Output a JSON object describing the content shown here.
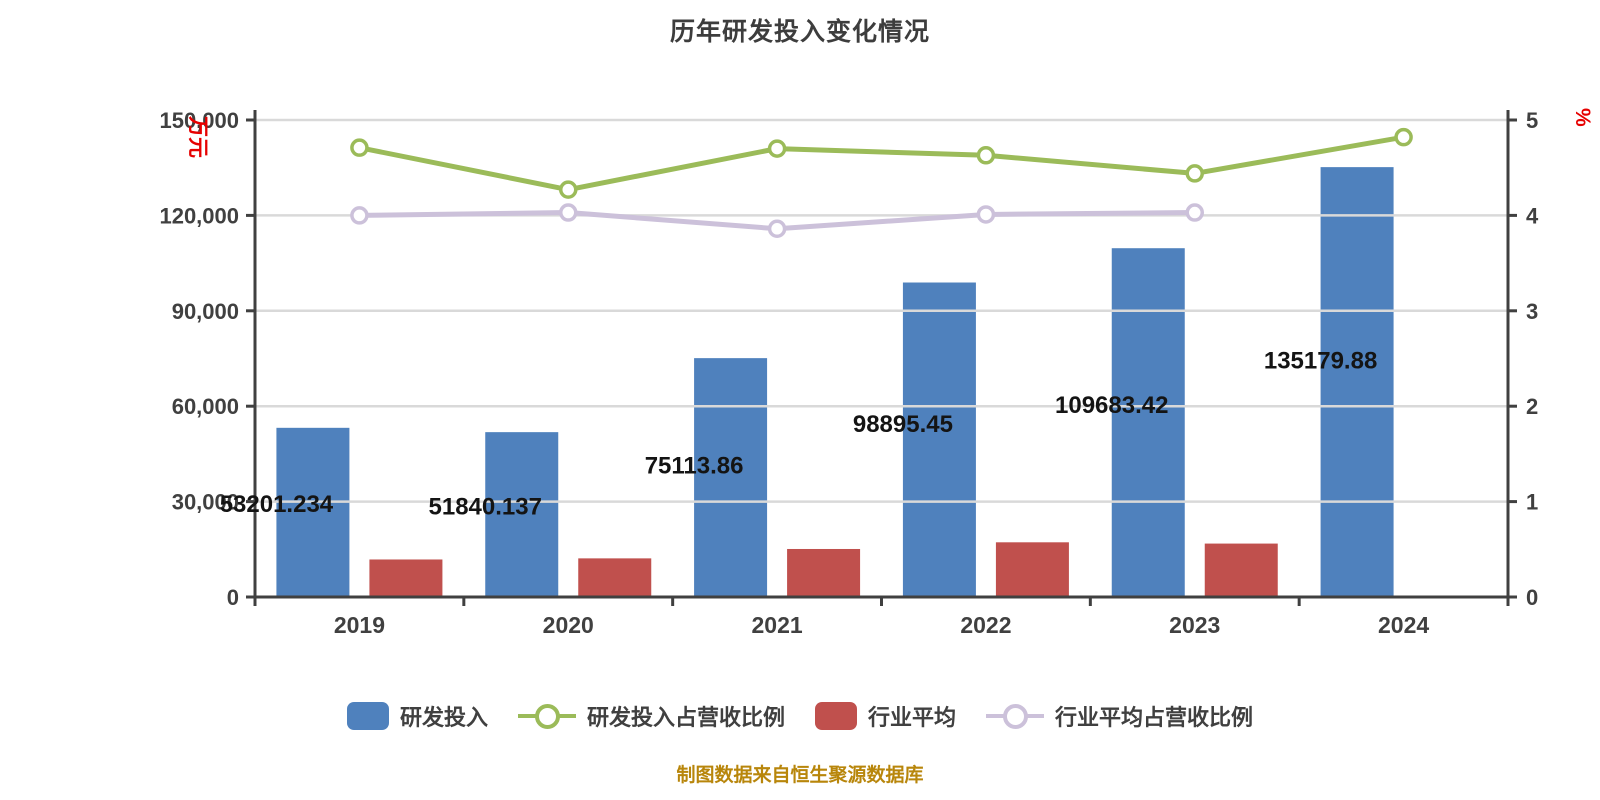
{
  "title": "历年研发投入变化情况",
  "footer": "制图数据来自恒生聚源数据库",
  "colors": {
    "bar_blue": "#4F81BD",
    "bar_red": "#C0504D",
    "line_green": "#9BBB59",
    "line_purple": "#CCC1DA",
    "axis": "#404040",
    "grid": "#D9D9D9",
    "tick_text": "#404040",
    "value_label": "#141414",
    "unit_red": "#E60000",
    "footer_gold": "#B8860B",
    "title_text": "#3D3D3D"
  },
  "legend": [
    {
      "label": "研发投入",
      "marker": "rect",
      "color": "#4F81BD"
    },
    {
      "label": "研发投入占营收比例",
      "marker": "line-dot",
      "color": "#9BBB59"
    },
    {
      "label": "行业平均",
      "marker": "rect",
      "color": "#C0504D"
    },
    {
      "label": "行业平均占营收比例",
      "marker": "line-dot",
      "color": "#CCC1DA"
    }
  ],
  "chart_data": {
    "type": "bar",
    "subtype": "bar+line dual-axis",
    "title": "历年研发投入变化情况",
    "categories": [
      "2019",
      "2020",
      "2021",
      "2022",
      "2023",
      "2024"
    ],
    "left_axis": {
      "unit": "万元",
      "min": 0,
      "max": 150000,
      "tick_step": 30000,
      "tick_labels": [
        "0",
        "30,000",
        "60,000",
        "90,000",
        "120,000",
        "150,000"
      ]
    },
    "right_axis": {
      "unit": "%",
      "min": 0,
      "max": 5,
      "tick_step": 1,
      "tick_labels": [
        "0",
        "1",
        "2",
        "3",
        "4",
        "5"
      ]
    },
    "grid": true,
    "legend_position": "bottom",
    "series": [
      {
        "name": "研发投入",
        "kind": "bar",
        "axis": "left",
        "color": "#4F81BD",
        "values": [
          53201.234,
          51840.137,
          75113.86,
          98895.45,
          109683.42,
          135179.88
        ],
        "data_labels": [
          "53201.234",
          "51840.137",
          "75113.86",
          "98895.45",
          "109683.42",
          "135179.88"
        ]
      },
      {
        "name": "行业平均",
        "kind": "bar",
        "axis": "left",
        "color": "#C0504D",
        "values": [
          11800,
          12150,
          15100,
          17200,
          16800,
          null
        ],
        "data_labels": []
      },
      {
        "name": "研发投入占营收比例",
        "kind": "line",
        "axis": "right",
        "color": "#9BBB59",
        "values": [
          4.71,
          4.27,
          4.7,
          4.63,
          4.44,
          4.82
        ]
      },
      {
        "name": "行业平均占营收比例",
        "kind": "line",
        "axis": "right",
        "color": "#CCC1DA",
        "values": [
          4.0,
          4.03,
          3.86,
          4.01,
          4.03,
          null
        ]
      }
    ]
  }
}
